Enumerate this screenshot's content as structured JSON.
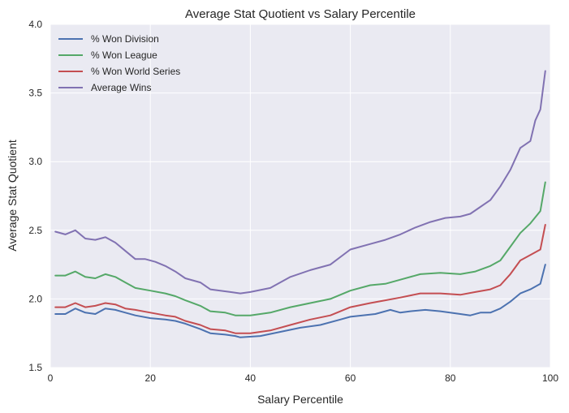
{
  "chart_data": {
    "type": "line",
    "title": "Average Stat Quotient vs Salary Percentile",
    "xlabel": "Salary Percentile",
    "ylabel": "Average Stat Quotient",
    "xlim": [
      0,
      100
    ],
    "ylim": [
      1.5,
      4.0
    ],
    "xticks": [
      0,
      20,
      40,
      60,
      80,
      100
    ],
    "yticks": [
      1.5,
      2.0,
      2.5,
      3.0,
      3.5,
      4.0
    ],
    "ytick_labels": [
      "1.5",
      "2.0",
      "2.5",
      "3.0",
      "3.5",
      "4.0"
    ],
    "grid": true,
    "legend_position": "top-left",
    "colors": {
      "background": "#eaeaf2",
      "grid": "#ffffff"
    },
    "series": [
      {
        "name": "% Won Division",
        "color": "#4c72b0",
        "points": [
          [
            1,
            1.89
          ],
          [
            3,
            1.89
          ],
          [
            5,
            1.93
          ],
          [
            7,
            1.9
          ],
          [
            9,
            1.89
          ],
          [
            11,
            1.93
          ],
          [
            13,
            1.92
          ],
          [
            15,
            1.9
          ],
          [
            17,
            1.88
          ],
          [
            20,
            1.86
          ],
          [
            23,
            1.85
          ],
          [
            25,
            1.84
          ],
          [
            27,
            1.82
          ],
          [
            30,
            1.78
          ],
          [
            32,
            1.75
          ],
          [
            35,
            1.74
          ],
          [
            37,
            1.73
          ],
          [
            38,
            1.72
          ],
          [
            42,
            1.73
          ],
          [
            46,
            1.76
          ],
          [
            50,
            1.79
          ],
          [
            54,
            1.81
          ],
          [
            58,
            1.85
          ],
          [
            60,
            1.87
          ],
          [
            65,
            1.89
          ],
          [
            68,
            1.92
          ],
          [
            70,
            1.9
          ],
          [
            72,
            1.91
          ],
          [
            75,
            1.92
          ],
          [
            78,
            1.91
          ],
          [
            82,
            1.89
          ],
          [
            84,
            1.88
          ],
          [
            86,
            1.9
          ],
          [
            88,
            1.9
          ],
          [
            90,
            1.93
          ],
          [
            92,
            1.98
          ],
          [
            94,
            2.04
          ],
          [
            96,
            2.07
          ],
          [
            98,
            2.11
          ],
          [
            99,
            2.25
          ]
        ]
      },
      {
        "name": "% Won League",
        "color": "#55a868",
        "points": [
          [
            1,
            2.17
          ],
          [
            3,
            2.17
          ],
          [
            5,
            2.2
          ],
          [
            7,
            2.16
          ],
          [
            9,
            2.15
          ],
          [
            11,
            2.18
          ],
          [
            13,
            2.16
          ],
          [
            15,
            2.12
          ],
          [
            17,
            2.08
          ],
          [
            20,
            2.06
          ],
          [
            23,
            2.04
          ],
          [
            25,
            2.02
          ],
          [
            27,
            1.99
          ],
          [
            30,
            1.95
          ],
          [
            32,
            1.91
          ],
          [
            35,
            1.9
          ],
          [
            37,
            1.88
          ],
          [
            40,
            1.88
          ],
          [
            44,
            1.9
          ],
          [
            48,
            1.94
          ],
          [
            52,
            1.97
          ],
          [
            56,
            2.0
          ],
          [
            60,
            2.06
          ],
          [
            64,
            2.1
          ],
          [
            67,
            2.11
          ],
          [
            70,
            2.14
          ],
          [
            74,
            2.18
          ],
          [
            78,
            2.19
          ],
          [
            82,
            2.18
          ],
          [
            85,
            2.2
          ],
          [
            88,
            2.24
          ],
          [
            90,
            2.28
          ],
          [
            92,
            2.38
          ],
          [
            94,
            2.48
          ],
          [
            96,
            2.55
          ],
          [
            98,
            2.64
          ],
          [
            99,
            2.85
          ]
        ]
      },
      {
        "name": "% Won World Series",
        "color": "#c44e52",
        "points": [
          [
            1,
            1.94
          ],
          [
            3,
            1.94
          ],
          [
            5,
            1.97
          ],
          [
            7,
            1.94
          ],
          [
            9,
            1.95
          ],
          [
            11,
            1.97
          ],
          [
            13,
            1.96
          ],
          [
            15,
            1.93
          ],
          [
            17,
            1.92
          ],
          [
            20,
            1.9
          ],
          [
            23,
            1.88
          ],
          [
            25,
            1.87
          ],
          [
            27,
            1.84
          ],
          [
            30,
            1.81
          ],
          [
            32,
            1.78
          ],
          [
            35,
            1.77
          ],
          [
            37,
            1.75
          ],
          [
            40,
            1.75
          ],
          [
            44,
            1.77
          ],
          [
            48,
            1.81
          ],
          [
            52,
            1.85
          ],
          [
            56,
            1.88
          ],
          [
            60,
            1.94
          ],
          [
            64,
            1.97
          ],
          [
            67,
            1.99
          ],
          [
            70,
            2.01
          ],
          [
            74,
            2.04
          ],
          [
            78,
            2.04
          ],
          [
            82,
            2.03
          ],
          [
            85,
            2.05
          ],
          [
            88,
            2.07
          ],
          [
            90,
            2.1
          ],
          [
            92,
            2.18
          ],
          [
            94,
            2.28
          ],
          [
            96,
            2.32
          ],
          [
            98,
            2.36
          ],
          [
            99,
            2.54
          ]
        ]
      },
      {
        "name": "Average Wins",
        "color": "#8172b2",
        "points": [
          [
            1,
            2.49
          ],
          [
            3,
            2.47
          ],
          [
            5,
            2.5
          ],
          [
            7,
            2.44
          ],
          [
            9,
            2.43
          ],
          [
            11,
            2.45
          ],
          [
            13,
            2.41
          ],
          [
            15,
            2.35
          ],
          [
            17,
            2.29
          ],
          [
            19,
            2.29
          ],
          [
            21,
            2.27
          ],
          [
            23,
            2.24
          ],
          [
            25,
            2.2
          ],
          [
            27,
            2.15
          ],
          [
            30,
            2.12
          ],
          [
            32,
            2.07
          ],
          [
            34,
            2.06
          ],
          [
            36,
            2.05
          ],
          [
            38,
            2.04
          ],
          [
            40,
            2.05
          ],
          [
            44,
            2.08
          ],
          [
            48,
            2.16
          ],
          [
            52,
            2.21
          ],
          [
            56,
            2.25
          ],
          [
            60,
            2.36
          ],
          [
            64,
            2.4
          ],
          [
            67,
            2.43
          ],
          [
            70,
            2.47
          ],
          [
            73,
            2.52
          ],
          [
            76,
            2.56
          ],
          [
            79,
            2.59
          ],
          [
            82,
            2.6
          ],
          [
            84,
            2.62
          ],
          [
            86,
            2.67
          ],
          [
            88,
            2.72
          ],
          [
            90,
            2.82
          ],
          [
            92,
            2.94
          ],
          [
            94,
            3.1
          ],
          [
            96,
            3.15
          ],
          [
            97,
            3.3
          ],
          [
            98,
            3.38
          ],
          [
            99,
            3.66
          ]
        ]
      }
    ]
  }
}
